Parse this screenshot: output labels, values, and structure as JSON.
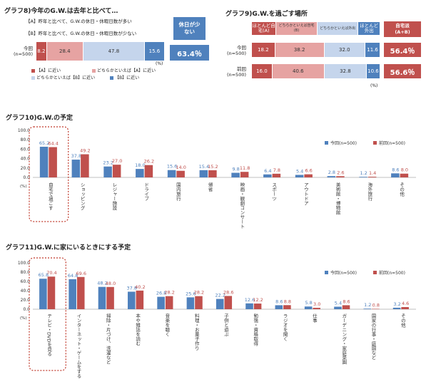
{
  "g8": {
    "title": "グラフ8)今年のG.W.は去年と比べて…",
    "desc_a": "【A】昨年と比べて、G.W.の休日・休暇日数が多い",
    "desc_b": "【B】昨年と比べて、G.W.の休日・休暇日数が少ない",
    "row_label_1": "今回",
    "row_label_2": "(n=500)",
    "values": [
      "8.2",
      "28.4",
      "47.8",
      "15.6"
    ],
    "shares": [
      8.2,
      28.4,
      47.8,
      15.6
    ],
    "unit": "(%)",
    "box_label": "休日が少ない",
    "box_value": "63.4％",
    "legend": [
      "【A】に近い",
      "どちらかといえば【A】に近い",
      "どちらかといえば【B】に近い",
      "【B】に近い"
    ],
    "colors": [
      "#c0504d",
      "#e6a3a2",
      "#c5d5ec",
      "#4f81bd"
    ]
  },
  "g9": {
    "title": "グラフ9)G.W.を過ごす場所",
    "headers": [
      "ほとんど自宅(A)",
      "どちらかといえば自宅(B)",
      "どちらかといえば外出",
      "ほとんど外出"
    ],
    "header_colors": [
      "#c0504d",
      "#e6a3a2",
      "#c5d5ec",
      "#4f81bd"
    ],
    "box_header": "自宅派(A+B)",
    "rows": [
      {
        "label1": "今回",
        "label2": "(n=500)",
        "values": [
          "18.2",
          "38.2",
          "32.0",
          "11.6"
        ],
        "shares": [
          18.2,
          38.2,
          32.0,
          11.6
        ],
        "total": "56.4％"
      },
      {
        "label1": "前回",
        "label2": "(n=500)",
        "values": [
          "16.0",
          "40.6",
          "32.8",
          "10.6"
        ],
        "shares": [
          16.0,
          40.6,
          32.8,
          10.6
        ],
        "total": "56.6％"
      }
    ],
    "unit": "(%)"
  },
  "g10": {
    "title": "グラフ10)G.W.の予定",
    "y_ticks": [
      "100.0",
      "80.0",
      "60.0",
      "40.0",
      "20.0",
      "0.0"
    ],
    "unit": "(%)",
    "legend": [
      "今回(n=500)",
      "前回(n=500)"
    ]
  },
  "g11": {
    "title": "グラフ11)G.W.に家にいるときにする予定",
    "y_ticks": [
      "100.0",
      "80.0",
      "60.0",
      "40.0",
      "20.0",
      "0.0"
    ],
    "unit": "(%)",
    "legend": [
      "今回(n=500)",
      "前回(n=500)"
    ]
  },
  "chart_data": [
    {
      "type": "bar",
      "title": "グラフ10)G.W.の予定",
      "categories": [
        "自宅で過ごす",
        "ショッピング",
        "レジャー施設",
        "ドライブ",
        "国内旅行",
        "帰省",
        "映画・観劇コンサート",
        "スポーツ",
        "アウトドア",
        "美術館・博物館",
        "海外旅行",
        "その他"
      ],
      "series": [
        {
          "name": "今回(n=500)",
          "color": "#4f81bd",
          "values": [
            65.2,
            37.8,
            23.2,
            18.0,
            15.6,
            15.4,
            9.8,
            6.4,
            5.4,
            2.8,
            1.2,
            8.6
          ]
        },
        {
          "name": "前回(n=500)",
          "color": "#c0504d",
          "values": [
            64.4,
            49.2,
            27.0,
            26.2,
            14.0,
            15.2,
            11.8,
            7.8,
            6.6,
            2.6,
            1.4,
            8.0
          ]
        }
      ],
      "ylim": [
        0,
        100
      ]
    },
    {
      "type": "bar",
      "title": "グラフ11)G.W.に家にいるときにする予定",
      "categories": [
        "テレビ・DVDを見る",
        "インターネット・ゲームをする",
        "掃除・片づけ、洗濯など",
        "本や雑誌を読む",
        "音楽を聴く",
        "料理・お菓子作り",
        "子供と遊ぶ",
        "勉強・資格取得",
        "ラジオを聞く",
        "仕事",
        "ガーデニング・家庭菜園",
        "国家の行事・庭園など",
        "その他"
      ],
      "series": [
        {
          "name": "今回(n=500)",
          "color": "#4f81bd",
          "values": [
            65.8,
            64.8,
            48.2,
            37.8,
            26.8,
            25.6,
            22.2,
            12.6,
            8.6,
            5.8,
            5.4,
            1.2,
            3.2
          ]
        },
        {
          "name": "前回(n=500)",
          "color": "#c0504d",
          "values": [
            70.4,
            69.6,
            48.0,
            40.2,
            28.2,
            28.2,
            28.6,
            12.2,
            8.8,
            3.0,
            8.6,
            0.8,
            4.6
          ]
        }
      ],
      "ylim": [
        0,
        100
      ]
    }
  ]
}
